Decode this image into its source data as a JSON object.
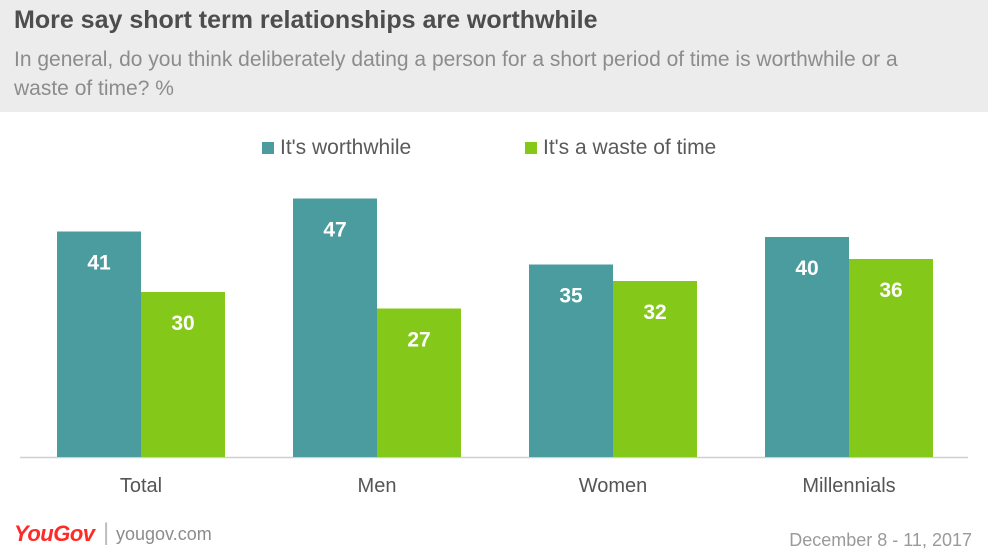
{
  "header": {
    "title": "More say short term relationships are worthwhile",
    "subtitle": "In general, do you think deliberately dating a person for a short period of time is worthwhile or a waste of time? %"
  },
  "legend": {
    "items": [
      {
        "label": "It's worthwhile",
        "color": "#4a9c9f"
      },
      {
        "label": "It's a waste of time",
        "color": "#84c91a"
      }
    ]
  },
  "chart_data": {
    "type": "bar",
    "categories": [
      "Total",
      "Men",
      "Women",
      "Millennials"
    ],
    "series": [
      {
        "name": "It's worthwhile",
        "values": [
          41,
          47,
          35,
          40
        ],
        "color": "#4a9c9f"
      },
      {
        "name": "It's a waste of time",
        "values": [
          30,
          27,
          32,
          36
        ],
        "color": "#84c91a"
      }
    ],
    "title": "More say short term relationships are worthwhile",
    "xlabel": "",
    "ylabel": "",
    "grid": false,
    "legend_position": "top"
  },
  "footer": {
    "brand": "YouGov",
    "separator": "|",
    "url": "yougov.com",
    "date": "December 8 - 11, 2017"
  }
}
